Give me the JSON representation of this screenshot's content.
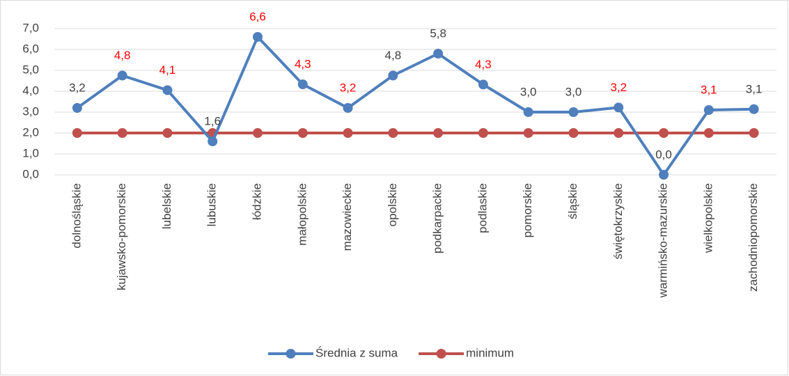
{
  "chart_data": {
    "type": "line",
    "categories": [
      "dolnośląskie",
      "kujawsko-pomorskie",
      "lubelskie",
      "lubuskie",
      "łódzkie",
      "małopolskie",
      "mazowieckie",
      "opolskie",
      "podkarpackie",
      "podlaskie",
      "pomorskie",
      "śląskie",
      "świętokrzyskie",
      "warmińsko-mazurskie",
      "wielkopolskie",
      "zachodniopomorskie"
    ],
    "series": [
      {
        "name": "Średnia z suma",
        "color": "#4f7fbd",
        "values": [
          3.2,
          4.75,
          4.05,
          1.6,
          6.6,
          4.33,
          3.2,
          4.75,
          5.8,
          4.32,
          3.0,
          3.0,
          3.22,
          0.0,
          3.1,
          3.14
        ],
        "value_labels": [
          "3,2",
          "4,8",
          "4,1",
          "1,6",
          "6,6",
          "4,3",
          "3,2",
          "4,8",
          "5,8",
          "4,3",
          "3,0",
          "3,0",
          "3,2",
          "0,0",
          "3,1",
          "3,1"
        ],
        "value_label_colors": [
          "#404040",
          "#ff0000",
          "#ff0000",
          "#404040",
          "#ff0000",
          "#ff0000",
          "#ff0000",
          "#404040",
          "#404040",
          "#ff0000",
          "#404040",
          "#404040",
          "#ff0000",
          "#404040",
          "#ff0000",
          "#404040"
        ]
      },
      {
        "name": "minimum",
        "color": "#c0504d",
        "values": [
          2.0,
          2.0,
          2.0,
          2.0,
          2.0,
          2.0,
          2.0,
          2.0,
          2.0,
          2.0,
          2.0,
          2.0,
          2.0,
          2.0,
          2.0,
          2.0
        ]
      }
    ],
    "ylim": [
      0,
      7
    ],
    "yticks": [
      {
        "value": 0,
        "label": "0,0"
      },
      {
        "value": 1,
        "label": "1,0"
      },
      {
        "value": 2,
        "label": "2,0"
      },
      {
        "value": 3,
        "label": "3,0"
      },
      {
        "value": 4,
        "label": "4,0"
      },
      {
        "value": 5,
        "label": "5,0"
      },
      {
        "value": 6,
        "label": "6,0"
      },
      {
        "value": 7,
        "label": "7,0"
      }
    ],
    "grid": true,
    "legend": "bottom"
  }
}
